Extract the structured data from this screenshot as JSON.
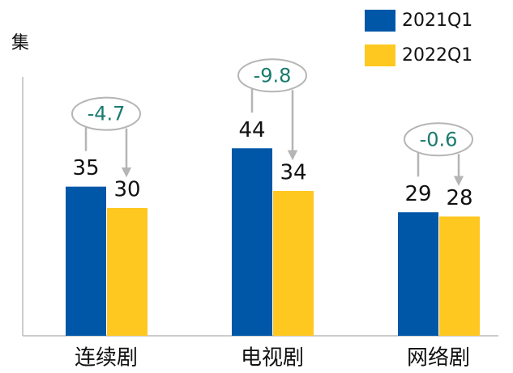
{
  "chart_data": {
    "type": "bar",
    "y_label": "集",
    "categories": [
      "连续剧",
      "电视剧",
      "网络剧"
    ],
    "series": [
      {
        "name": "2021Q1",
        "color": "#0057a8",
        "values": [
          35,
          44,
          29
        ]
      },
      {
        "name": "2022Q1",
        "color": "#ffc820",
        "values": [
          30,
          34,
          28
        ]
      }
    ],
    "annotations": [
      "-4.7",
      "-9.8",
      "-0.6"
    ],
    "ylim": [
      0,
      60
    ],
    "grid": false
  }
}
